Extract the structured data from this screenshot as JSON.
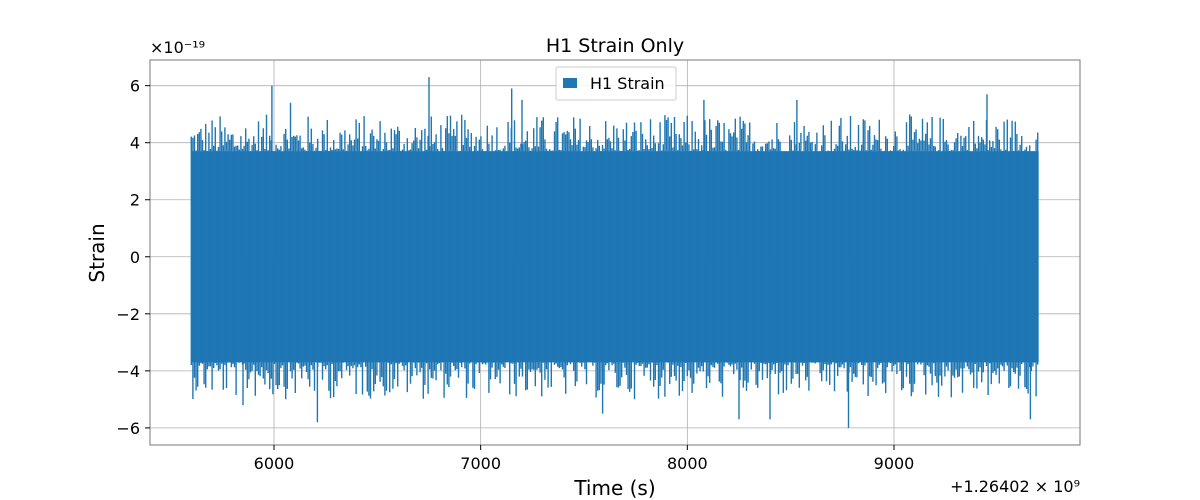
{
  "chart_data": {
    "type": "line",
    "title": "H1 Strain Only",
    "xlabel": "Time (s)",
    "ylabel": "Strain",
    "x_offset_label": "+1.26402 × 10⁹",
    "y_multiplier_label": "×10⁻¹⁹",
    "xlim": [
      5400,
      9900
    ],
    "ylim": [
      -6.6,
      6.9
    ],
    "x_ticks": [
      6000,
      7000,
      8000,
      9000
    ],
    "x_tick_labels": [
      "6000",
      "7000",
      "8000",
      "9000"
    ],
    "y_ticks": [
      -6,
      -4,
      -2,
      0,
      2,
      4,
      6
    ],
    "y_tick_labels": [
      "−6",
      "−4",
      "−2",
      "0",
      "2",
      "4",
      "6"
    ],
    "grid": true,
    "legend_position": "top-center",
    "series": [
      {
        "name": "H1 Strain",
        "color": "#1f77b4",
        "x_range": [
          5600,
          9700
        ],
        "core_band": [
          -3.7,
          3.7
        ],
        "extremes": [
          {
            "x": 5990,
            "y": 6.0
          },
          {
            "x": 6080,
            "y": 5.4
          },
          {
            "x": 6750,
            "y": 6.3
          },
          {
            "x": 7150,
            "y": 5.9
          },
          {
            "x": 7200,
            "y": 5.5
          },
          {
            "x": 8080,
            "y": 5.5
          },
          {
            "x": 8530,
            "y": 5.5
          },
          {
            "x": 9450,
            "y": 5.7
          },
          {
            "x": 5850,
            "y": -5.2
          },
          {
            "x": 6210,
            "y": -5.8
          },
          {
            "x": 7590,
            "y": -5.5
          },
          {
            "x": 8250,
            "y": -5.7
          },
          {
            "x": 8400,
            "y": -5.7
          },
          {
            "x": 8780,
            "y": -6.0
          },
          {
            "x": 9660,
            "y": -5.7
          }
        ]
      }
    ]
  }
}
